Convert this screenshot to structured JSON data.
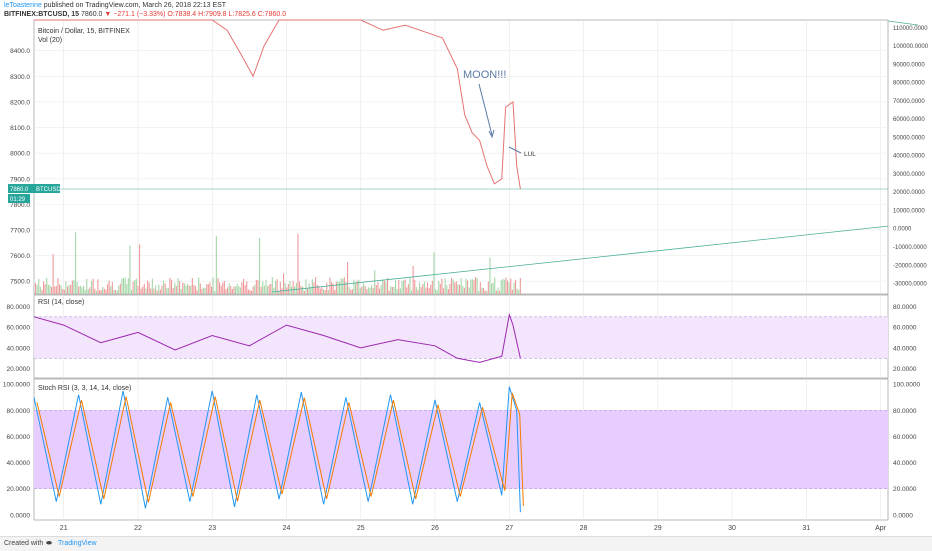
{
  "header": {
    "username": "leToasterine",
    "published_text": "published on TradingView.com, March 26, 2018 22:13 EST",
    "symbol": "BITFINEX:BTCUSD, 15",
    "last": "7860.0",
    "change": "−271.1 (−3.33%)",
    "ohlc": "O:7838.4 H:7909.8 L:7825.6 C:7860.0"
  },
  "footer": {
    "created_with": "Created with",
    "brand": "TradingView"
  },
  "colors": {
    "rsi_line": "#9c27b0",
    "rsi_band": "#f3e5fb",
    "stoch_band": "#e6ccff",
    "stoch_k": "#2196f3",
    "stoch_d": "#f57c00",
    "vol_up": "#a5d6a7",
    "vol_down": "#ef9a9a",
    "price_line": "#4caf9a",
    "annotation": "#5c7ba6"
  },
  "chart_data": [
    {
      "type": "line",
      "title": "Bitcoin / Dollar, 15, BITFINEX",
      "indicator": "Vol (20)",
      "ylim": [
        7450,
        8520
      ],
      "y_ticks": [
        "8400.0",
        "8300.0",
        "8200.0",
        "8100.0",
        "8000.0",
        "7900.0",
        "7800.0",
        "7700.0",
        "7600.0",
        "7500.0"
      ],
      "y_ticks_vol": [
        "110000.0000",
        "100000.0000",
        "90000.0000",
        "80000.0000",
        "70000.0000",
        "60000.0000",
        "50000.0000",
        "40000.0000",
        "30000.0000",
        "20000.0000",
        "10000.0000",
        "0.0000",
        "-10000.0000",
        "-20000.0000",
        "-30000.0000"
      ],
      "x_ticks": [
        "21",
        "22",
        "23",
        "24",
        "25",
        "26",
        "27",
        "28",
        "29",
        "30",
        "31",
        "Apr"
      ],
      "price_label": "7860.0",
      "symbol_label": "BTCUSD",
      "countdown_label": "01:29",
      "price_line": 7860,
      "annotations": [
        "MOON!!!",
        "LUL"
      ],
      "approx_path": [
        {
          "x": 20.6,
          "y": 8520
        },
        {
          "x": 23.0,
          "y": 8520
        },
        {
          "x": 23.2,
          "y": 8480
        },
        {
          "x": 23.4,
          "y": 8380
        },
        {
          "x": 23.55,
          "y": 8300
        },
        {
          "x": 23.7,
          "y": 8420
        },
        {
          "x": 23.9,
          "y": 8520
        },
        {
          "x": 25.0,
          "y": 8520
        },
        {
          "x": 25.3,
          "y": 8480
        },
        {
          "x": 25.6,
          "y": 8500
        },
        {
          "x": 25.9,
          "y": 8470
        },
        {
          "x": 26.1,
          "y": 8450
        },
        {
          "x": 26.3,
          "y": 8330
        },
        {
          "x": 26.4,
          "y": 8150
        },
        {
          "x": 26.5,
          "y": 8080
        },
        {
          "x": 26.6,
          "y": 8050
        },
        {
          "x": 26.7,
          "y": 7950
        },
        {
          "x": 26.8,
          "y": 7880
        },
        {
          "x": 26.9,
          "y": 7900
        },
        {
          "x": 26.95,
          "y": 8180
        },
        {
          "x": 27.05,
          "y": 8200
        },
        {
          "x": 27.1,
          "y": 7950
        },
        {
          "x": 27.15,
          "y": 7860
        }
      ]
    },
    {
      "type": "line",
      "indicator": "RSI (14, close)",
      "ylim": [
        11,
        91
      ],
      "y_ticks": [
        "80.0000",
        "60.0000",
        "40.0000",
        "20.0000"
      ],
      "band": [
        30,
        70
      ],
      "approx_path": [
        {
          "x": 20.6,
          "y": 70
        },
        {
          "x": 21.0,
          "y": 62
        },
        {
          "x": 21.5,
          "y": 45
        },
        {
          "x": 22.0,
          "y": 55
        },
        {
          "x": 22.5,
          "y": 38
        },
        {
          "x": 23.0,
          "y": 52
        },
        {
          "x": 23.5,
          "y": 42
        },
        {
          "x": 24.0,
          "y": 62
        },
        {
          "x": 24.5,
          "y": 52
        },
        {
          "x": 25.0,
          "y": 40
        },
        {
          "x": 25.5,
          "y": 48
        },
        {
          "x": 26.0,
          "y": 42
        },
        {
          "x": 26.3,
          "y": 30
        },
        {
          "x": 26.6,
          "y": 26
        },
        {
          "x": 26.9,
          "y": 32
        },
        {
          "x": 27.0,
          "y": 72
        },
        {
          "x": 27.05,
          "y": 62
        },
        {
          "x": 27.15,
          "y": 30
        }
      ]
    },
    {
      "type": "line",
      "indicator": "Stoch RSI (3, 3, 14, 14, close)",
      "ylim": [
        -4,
        104
      ],
      "y_ticks": [
        "100.0000",
        "80.0000",
        "60.0000",
        "40.0000",
        "20.0000",
        "0.0000"
      ],
      "band": [
        20,
        80
      ],
      "series": [
        {
          "approx_path": [
            {
              "x": 20.6,
              "y": 90
            },
            {
              "x": 20.9,
              "y": 10
            },
            {
              "x": 21.2,
              "y": 92
            },
            {
              "x": 21.5,
              "y": 8
            },
            {
              "x": 21.8,
              "y": 95
            },
            {
              "x": 22.1,
              "y": 5
            },
            {
              "x": 22.4,
              "y": 90
            },
            {
              "x": 22.7,
              "y": 10
            },
            {
              "x": 23.0,
              "y": 95
            },
            {
              "x": 23.3,
              "y": 6
            },
            {
              "x": 23.6,
              "y": 92
            },
            {
              "x": 23.9,
              "y": 12
            },
            {
              "x": 24.2,
              "y": 94
            },
            {
              "x": 24.5,
              "y": 8
            },
            {
              "x": 24.8,
              "y": 90
            },
            {
              "x": 25.1,
              "y": 10
            },
            {
              "x": 25.4,
              "y": 92
            },
            {
              "x": 25.7,
              "y": 8
            },
            {
              "x": 26.0,
              "y": 88
            },
            {
              "x": 26.3,
              "y": 10
            },
            {
              "x": 26.6,
              "y": 86
            },
            {
              "x": 26.9,
              "y": 15
            },
            {
              "x": 27.0,
              "y": 98
            },
            {
              "x": 27.1,
              "y": 80
            },
            {
              "x": 27.15,
              "y": 2
            }
          ]
        }
      ]
    }
  ]
}
